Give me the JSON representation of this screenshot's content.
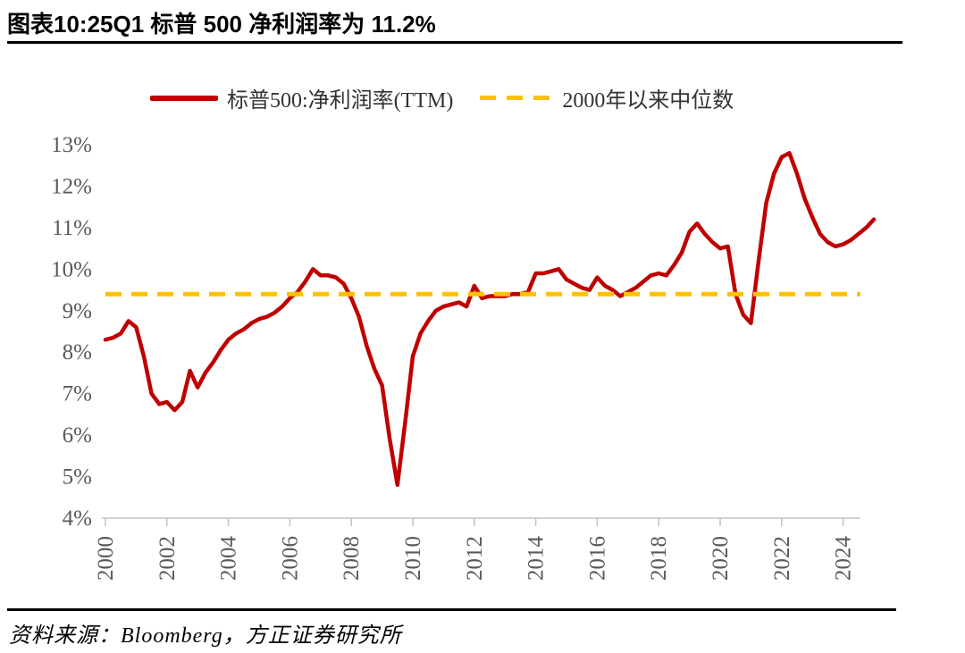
{
  "header": {
    "title": "图表10:25Q1 标普 500 净利润率为 11.2%"
  },
  "legend": {
    "series1_label": "标普500:净利润率(TTM)",
    "series2_label": "2000年以来中位数"
  },
  "footer": {
    "source": "资料来源：Bloomberg，方正证券研究所"
  },
  "colors": {
    "line": "#C00000",
    "median": "#FFC000",
    "axis": "#C4C4C4",
    "tick_label": "#595959",
    "rule": "#000000"
  },
  "chart_data": {
    "type": "line",
    "title": "图表10:25Q1 标普 500 净利润率为 11.2%",
    "x_start": 2000.0,
    "x_step": 0.25,
    "series": [
      {
        "name": "标普500:净利润率(TTM)",
        "color": "#C00000",
        "style": "solid",
        "values": [
          8.3,
          8.35,
          8.45,
          8.75,
          8.6,
          7.9,
          7.0,
          6.75,
          6.8,
          6.6,
          6.8,
          7.55,
          7.15,
          7.5,
          7.75,
          8.05,
          8.3,
          8.45,
          8.55,
          8.7,
          8.8,
          8.85,
          8.95,
          9.1,
          9.3,
          9.45,
          9.7,
          10.0,
          9.85,
          9.85,
          9.8,
          9.65,
          9.3,
          8.85,
          8.15,
          7.6,
          7.2,
          5.9,
          4.8,
          6.3,
          7.9,
          8.45,
          8.75,
          9.0,
          9.1,
          9.15,
          9.2,
          9.1,
          9.6,
          9.3,
          9.35,
          9.35,
          9.35,
          9.4,
          9.4,
          9.45,
          9.9,
          9.9,
          9.95,
          10.0,
          9.75,
          9.65,
          9.55,
          9.5,
          9.8,
          9.6,
          9.5,
          9.35,
          9.45,
          9.55,
          9.7,
          9.85,
          9.9,
          9.85,
          10.1,
          10.4,
          10.9,
          11.1,
          10.85,
          10.65,
          10.5,
          10.55,
          9.4,
          8.9,
          8.7,
          10.2,
          11.6,
          12.3,
          12.7,
          12.8,
          12.3,
          11.7,
          11.25,
          10.85,
          10.65,
          10.55,
          10.6,
          10.7,
          10.85,
          11.0,
          11.2
        ]
      },
      {
        "name": "2000年以来中位数",
        "color": "#FFC000",
        "style": "dashed",
        "value": 9.4
      }
    ],
    "xlim": [
      2000,
      2025
    ],
    "ylim": [
      4,
      13
    ],
    "x_ticks": [
      2000,
      2002,
      2004,
      2006,
      2008,
      2010,
      2012,
      2014,
      2016,
      2018,
      2020,
      2022,
      2024
    ],
    "y_ticks": [
      13,
      12,
      11,
      10,
      9,
      8,
      7,
      6,
      5,
      4
    ],
    "y_suffix": "%",
    "grid": false,
    "legend_position": "top"
  }
}
